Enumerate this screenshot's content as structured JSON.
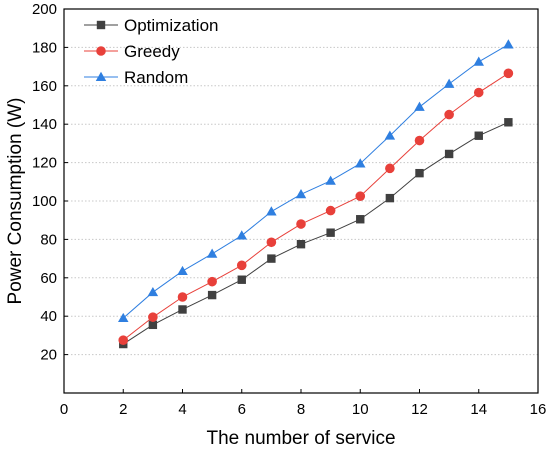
{
  "chart_data": {
    "type": "line",
    "title": "",
    "xlabel": "The number of service",
    "ylabel": "Power Consumption (W)",
    "xlim": [
      0,
      16
    ],
    "ylim": [
      0,
      200
    ],
    "xticks": [
      0,
      2,
      4,
      6,
      8,
      10,
      12,
      14,
      16
    ],
    "yticks": [
      20,
      40,
      60,
      80,
      100,
      120,
      140,
      160,
      180,
      200
    ],
    "grid": "horizontal dotted",
    "legend_position": "top-left",
    "x": [
      2,
      3,
      4,
      5,
      6,
      7,
      8,
      9,
      10,
      11,
      12,
      13,
      14,
      15
    ],
    "series": [
      {
        "name": "Optimization",
        "marker": "square",
        "color": "#404040",
        "values": [
          25.5,
          35.5,
          43.5,
          51,
          59,
          70,
          77.5,
          83.5,
          90.5,
          101.5,
          114.5,
          124.5,
          134,
          141
        ]
      },
      {
        "name": "Greedy",
        "marker": "circle",
        "color": "#e8403a",
        "values": [
          27.5,
          39.5,
          50,
          58,
          66.5,
          78.5,
          88,
          95,
          102.5,
          117,
          131.5,
          145,
          156.5,
          166.5
        ]
      },
      {
        "name": "Random",
        "marker": "triangle",
        "color": "#2f7fe0",
        "values": [
          39,
          52.5,
          63.5,
          72.5,
          82,
          94.5,
          103.5,
          110.5,
          119.5,
          134,
          149,
          161,
          172.5,
          181.5
        ]
      }
    ]
  }
}
